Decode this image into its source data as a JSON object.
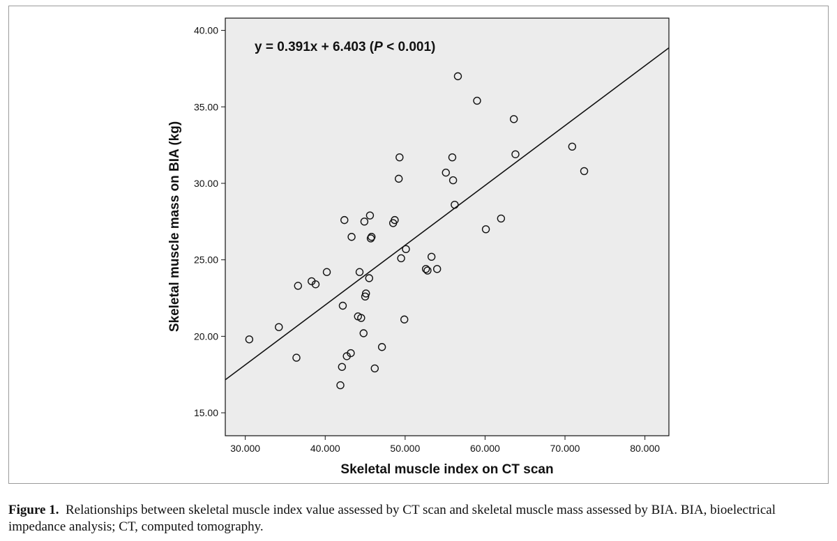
{
  "figure": {
    "caption_label": "Figure 1.",
    "caption_text": "Relationships between skeletal muscle index value assessed by CT scan and skeletal muscle mass assessed by BIA. BIA, bioelectrical impedance analysis; CT, computed tomography."
  },
  "colors": {
    "plot_background": "#ececec",
    "marker": "#111111",
    "line": "#111111",
    "axis": "#111111"
  },
  "chart_data": {
    "type": "scatter",
    "title": "",
    "xlabel": "Skeletal muscle index on CT scan",
    "ylabel": "Skeletal muscle mass on BIA (kg)",
    "xlim": [
      27.5,
      83
    ],
    "ylim": [
      13.5,
      40.8
    ],
    "xticks": [
      30,
      40,
      50,
      60,
      70,
      80
    ],
    "xtick_labels": [
      "30.000",
      "40.000",
      "50.000",
      "60.000",
      "70.000",
      "80.000"
    ],
    "yticks": [
      15,
      20,
      25,
      30,
      35,
      40
    ],
    "ytick_labels": [
      "15.00",
      "20.00",
      "25.00",
      "30.00",
      "35.00",
      "40.00"
    ],
    "regression": {
      "slope": 0.391,
      "intercept": 6.403
    },
    "annotation": {
      "prefix": "y = 0.391x + 6.403 (",
      "p_symbol": "P",
      "suffix": " < 0.001)"
    },
    "grid": false,
    "points": [
      {
        "x": 30.5,
        "y": 19.8
      },
      {
        "x": 34.2,
        "y": 20.6
      },
      {
        "x": 36.4,
        "y": 18.6
      },
      {
        "x": 36.6,
        "y": 23.3
      },
      {
        "x": 38.3,
        "y": 23.6
      },
      {
        "x": 38.8,
        "y": 23.4
      },
      {
        "x": 40.2,
        "y": 24.2
      },
      {
        "x": 41.9,
        "y": 16.8
      },
      {
        "x": 42.1,
        "y": 18.0
      },
      {
        "x": 42.2,
        "y": 22.0
      },
      {
        "x": 42.4,
        "y": 27.6
      },
      {
        "x": 42.7,
        "y": 18.7
      },
      {
        "x": 43.2,
        "y": 18.9
      },
      {
        "x": 43.3,
        "y": 26.5
      },
      {
        "x": 44.1,
        "y": 21.3
      },
      {
        "x": 44.3,
        "y": 24.2
      },
      {
        "x": 44.5,
        "y": 21.2
      },
      {
        "x": 44.8,
        "y": 20.2
      },
      {
        "x": 44.9,
        "y": 27.5
      },
      {
        "x": 45.0,
        "y": 22.6
      },
      {
        "x": 45.1,
        "y": 22.8
      },
      {
        "x": 45.5,
        "y": 23.8
      },
      {
        "x": 45.6,
        "y": 27.9
      },
      {
        "x": 45.7,
        "y": 26.4
      },
      {
        "x": 45.8,
        "y": 26.5
      },
      {
        "x": 46.2,
        "y": 17.9
      },
      {
        "x": 47.1,
        "y": 19.3
      },
      {
        "x": 48.5,
        "y": 27.4
      },
      {
        "x": 48.7,
        "y": 27.6
      },
      {
        "x": 49.2,
        "y": 30.3
      },
      {
        "x": 49.3,
        "y": 31.7
      },
      {
        "x": 49.5,
        "y": 25.1
      },
      {
        "x": 49.9,
        "y": 21.1
      },
      {
        "x": 50.1,
        "y": 25.7
      },
      {
        "x": 52.6,
        "y": 24.4
      },
      {
        "x": 52.8,
        "y": 24.3
      },
      {
        "x": 53.3,
        "y": 25.2
      },
      {
        "x": 54.0,
        "y": 24.4
      },
      {
        "x": 55.1,
        "y": 30.7
      },
      {
        "x": 55.9,
        "y": 31.7
      },
      {
        "x": 56.0,
        "y": 30.2
      },
      {
        "x": 56.2,
        "y": 28.6
      },
      {
        "x": 56.6,
        "y": 37.0
      },
      {
        "x": 59.0,
        "y": 35.4
      },
      {
        "x": 60.1,
        "y": 27.0
      },
      {
        "x": 62.0,
        "y": 27.7
      },
      {
        "x": 63.6,
        "y": 34.2
      },
      {
        "x": 63.8,
        "y": 31.9
      },
      {
        "x": 70.9,
        "y": 32.4
      },
      {
        "x": 72.4,
        "y": 30.8
      }
    ]
  }
}
